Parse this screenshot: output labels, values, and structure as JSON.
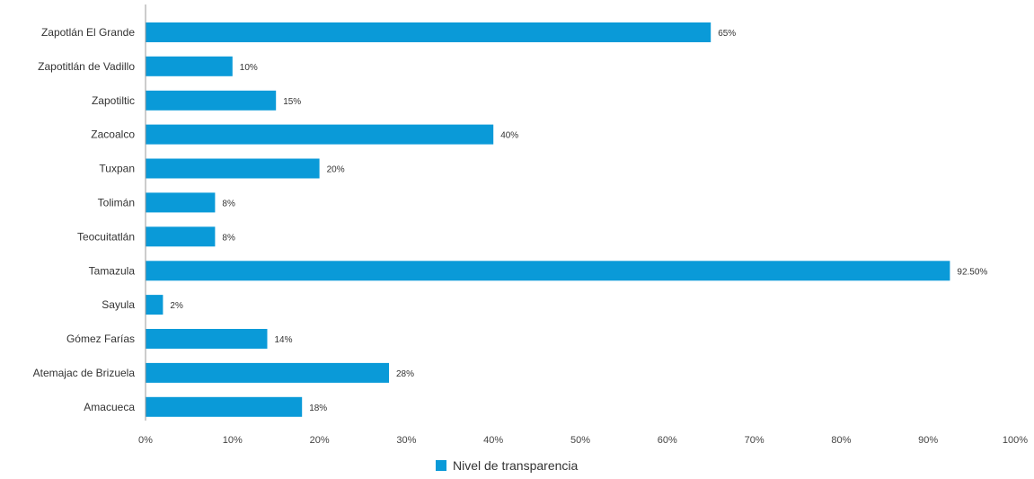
{
  "chart_data": {
    "type": "bar",
    "orientation": "horizontal",
    "categories": [
      "Zapotlán El Grande",
      "Zapotitlán de Vadillo",
      "Zapotiltic",
      "Zacoalco",
      "Tuxpan",
      "Tolimán",
      "Teocuitatlán",
      "Tamazula",
      "Sayula",
      "Gómez Farías",
      "Atemajac de Brizuela",
      "Amacueca"
    ],
    "series": [
      {
        "name": "Nivel de transparencia",
        "color": "#0a9ad8",
        "values": [
          65,
          10,
          15,
          40,
          20,
          8,
          8,
          92.5,
          2,
          14,
          28,
          18
        ],
        "labels": [
          "65%",
          "10%",
          "15%",
          "40%",
          "20%",
          "8%",
          "8%",
          "92.50%",
          "2%",
          "14%",
          "28%",
          "18%"
        ]
      }
    ],
    "xlim": [
      0,
      100
    ],
    "x_ticks": [
      "0%",
      "10%",
      "20%",
      "30%",
      "40%",
      "50%",
      "60%",
      "70%",
      "80%",
      "90%",
      "100%"
    ],
    "grid": false,
    "legend_position": "bottom"
  }
}
